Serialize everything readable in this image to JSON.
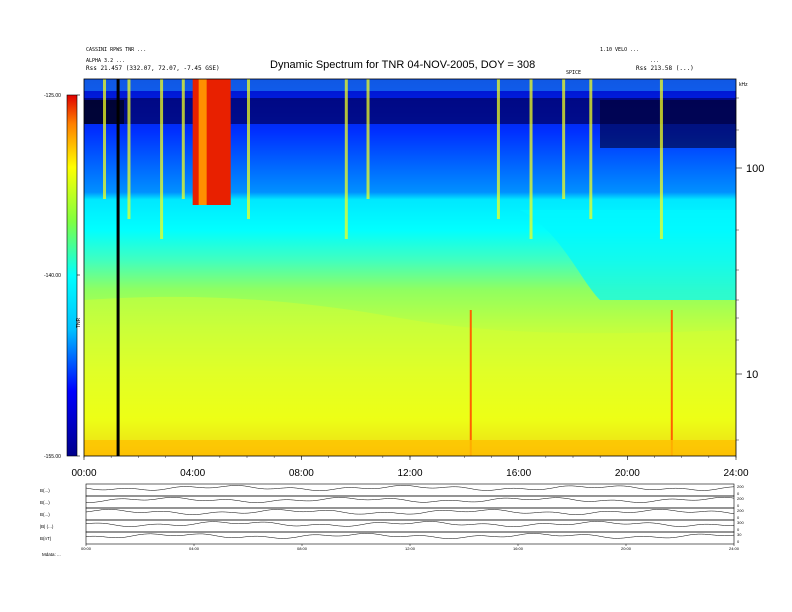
{
  "chart_data": {
    "type": "heatmap",
    "title": "Dynamic Spectrum for TNR 04-NOV-2005, DOY = 308",
    "header_left": [
      "CASSINI RPWS TNR ...",
      "ALPHA 3.2 ...",
      "Rss   21.457 (332.07, 72.07, -7.45 GSE)"
    ],
    "header_right": [
      "1.10 VELO ...",
      "...",
      "Rss   213.58 (...)"
    ],
    "tag_mid": "SPICE",
    "colorbar": {
      "ticks": [
        "-125.00",
        "-140.00",
        "-155.00"
      ],
      "label": "TNR",
      "vmin": -155,
      "vmax": -125
    },
    "x_ticks": [
      "00:00",
      "04:00",
      "08:00",
      "12:00",
      "16:00",
      "20:00",
      "24:00"
    ],
    "x_range_hours": [
      0,
      24
    ],
    "y_right_ticks": [
      "100",
      "10"
    ],
    "y_right_unit": "kHz",
    "y_scale": "log",
    "features": {
      "black_vertical_line_hour": 1.2,
      "red_burst_hours": [
        4.0,
        5.4
      ],
      "spike_hours": [
        14.2,
        21.6
      ]
    },
    "lower_panels": {
      "labels": [
        "B(...)",
        "B(...)",
        "B(...)",
        "|B| (...)",
        "B(nT)"
      ],
      "right_labels": [
        "200",
        "0",
        "200",
        "0",
        "200",
        "0",
        "300",
        "0",
        "30",
        "0"
      ],
      "x_ticks": [
        "00:00",
        "04:00",
        "08:00",
        "12:00",
        "16:00",
        "20:00",
        "24:00"
      ],
      "footer": "Mdata: ..."
    }
  }
}
